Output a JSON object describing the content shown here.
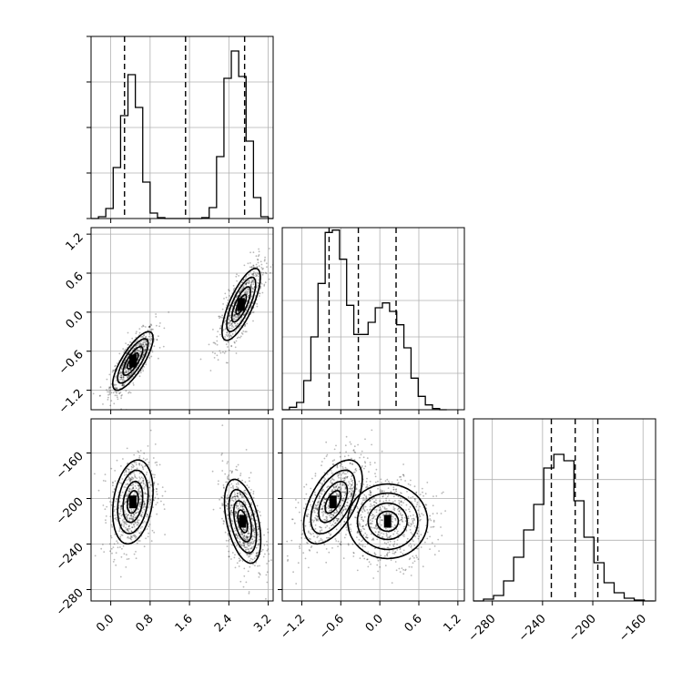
{
  "chart_data": [
    {
      "type": "histogram",
      "panel": "param-0-marginal",
      "xlim": [
        -0.4,
        3.3
      ],
      "bin_edges": [
        -0.4,
        -0.25,
        -0.1,
        0.05,
        0.2,
        0.35,
        0.5,
        0.65,
        0.8,
        0.95,
        1.1,
        1.25,
        1.4,
        1.55,
        1.7,
        1.85,
        2.0,
        2.15,
        2.3,
        2.45,
        2.6,
        2.75,
        2.9,
        3.05,
        3.2,
        3.3
      ],
      "counts": [
        0,
        20,
        110,
        560,
        1130,
        1580,
        1220,
        400,
        60,
        10,
        0,
        0,
        0,
        0,
        0,
        10,
        120,
        680,
        1540,
        1840,
        1560,
        850,
        230,
        20,
        0
      ],
      "ylim": [
        0,
        2000
      ],
      "quantiles": [
        0.28,
        1.52,
        2.72
      ],
      "grid": true
    },
    {
      "type": "histogram",
      "panel": "param-1-marginal",
      "xlim": [
        -1.5,
        1.3
      ],
      "xticks": [
        "-1.2",
        "-0.6",
        "0.0",
        "0.6",
        "1.2"
      ],
      "bin_edges": [
        -1.5,
        -1.39,
        -1.28,
        -1.17,
        -1.06,
        -0.95,
        -0.84,
        -0.73,
        -0.62,
        -0.51,
        -0.4,
        -0.29,
        -0.18,
        -0.07,
        0.04,
        0.15,
        0.26,
        0.37,
        0.48,
        0.59,
        0.7,
        0.81,
        0.92,
        1.03
      ],
      "counts": [
        0,
        20,
        60,
        240,
        600,
        1040,
        1460,
        1480,
        1240,
        860,
        620,
        620,
        720,
        840,
        880,
        810,
        700,
        510,
        260,
        110,
        40,
        10,
        0
      ],
      "ylim": [
        0,
        1500
      ],
      "quantiles": [
        -0.78,
        -0.33,
        0.25
      ],
      "grid": true
    },
    {
      "type": "histogram",
      "panel": "param-2-marginal",
      "xlim": [
        -295,
        -150
      ],
      "xticks": [
        "-280",
        "-240",
        "-200",
        "-160"
      ],
      "bin_edges": [
        -295,
        -287,
        -279,
        -271,
        -263,
        -255,
        -247,
        -239,
        -231,
        -223,
        -215,
        -207,
        -199,
        -191,
        -183,
        -175,
        -167,
        -159,
        -151
      ],
      "counts": [
        0,
        20,
        60,
        220,
        480,
        780,
        1060,
        1460,
        1610,
        1540,
        1100,
        700,
        420,
        200,
        90,
        30,
        10,
        0
      ],
      "ylim": [
        0,
        2000
      ],
      "quantiles": [
        -233,
        -214,
        -196
      ],
      "grid": true
    },
    {
      "type": "scatter-density",
      "panel": "param-0-vs-param-1",
      "xlim": [
        -0.4,
        3.3
      ],
      "ylim": [
        -1.5,
        1.3
      ],
      "yticks": [
        "-1.2",
        "-0.6",
        "0.0",
        "0.6",
        "1.2"
      ],
      "clusters": [
        {
          "center": [
            0.45,
            -0.75
          ],
          "sd": [
            0.2,
            0.22
          ],
          "rho": 0.78
        },
        {
          "center": [
            2.65,
            0.12
          ],
          "sd": [
            0.19,
            0.27
          ],
          "rho": 0.75
        }
      ],
      "grid": true
    },
    {
      "type": "scatter-density",
      "panel": "param-0-vs-param-2",
      "xlim": [
        -0.4,
        3.3
      ],
      "ylim": [
        -290,
        -130
      ],
      "xticks": [
        "0.0",
        "0.8",
        "1.6",
        "2.4",
        "3.2"
      ],
      "yticks": [
        "-160",
        "-200",
        "-240",
        "-280"
      ],
      "clusters": [
        {
          "center": [
            0.45,
            -203
          ],
          "sd": [
            0.2,
            18
          ],
          "rho": 0.25
        },
        {
          "center": [
            2.68,
            -220
          ],
          "sd": [
            0.18,
            18
          ],
          "rho": -0.45
        }
      ],
      "grid": true
    },
    {
      "type": "scatter-density",
      "panel": "param-1-vs-param-2",
      "xlim": [
        -1.5,
        1.3
      ],
      "ylim": [
        -290,
        -130
      ],
      "xticks": [
        "-1.2",
        "-0.6",
        "0.0",
        "0.6",
        "1.2"
      ],
      "clusters": [
        {
          "center": [
            -0.72,
            -203
          ],
          "sd": [
            0.22,
            18
          ],
          "rho": 0.55
        },
        {
          "center": [
            0.12,
            -220
          ],
          "sd": [
            0.3,
            16
          ],
          "rho": 0.0
        }
      ],
      "grid": true
    }
  ]
}
